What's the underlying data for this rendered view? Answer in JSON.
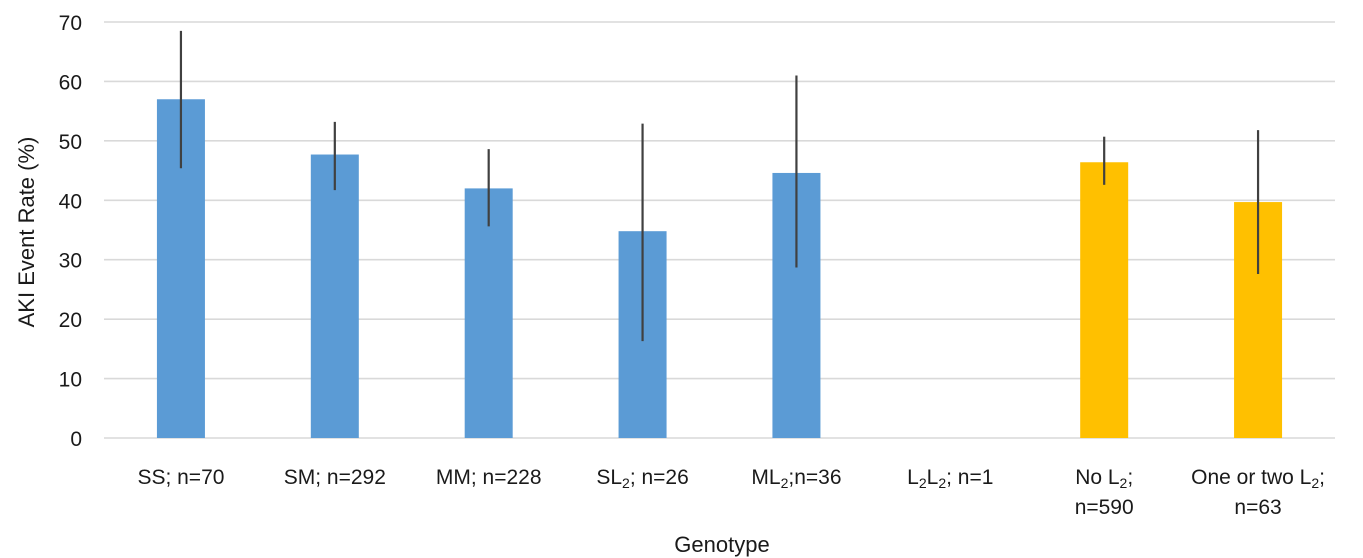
{
  "chart_data": {
    "type": "bar",
    "title": "",
    "xlabel": "Genotype",
    "ylabel": "AKI Event Rate (%)",
    "ylim": [
      0,
      70
    ],
    "yticks": [
      0,
      10,
      20,
      30,
      40,
      50,
      60,
      70
    ],
    "grid": true,
    "legend": "none",
    "categories": [
      {
        "lines": [
          [
            "SS; n=70"
          ]
        ]
      },
      {
        "lines": [
          [
            "SM; n=292"
          ]
        ]
      },
      {
        "lines": [
          [
            "MM; n=228"
          ]
        ]
      },
      {
        "lines": [
          [
            "SL",
            {
              "sub": "2"
            },
            "; n=26"
          ]
        ]
      },
      {
        "lines": [
          [
            "ML",
            {
              "sub": "2"
            },
            ";n=36"
          ]
        ]
      },
      {
        "lines": [
          [
            "L",
            {
              "sub": "2"
            },
            "L",
            {
              "sub": "2"
            },
            "; n=1"
          ]
        ]
      },
      {
        "lines": [
          [
            "No L",
            {
              "sub": "2"
            },
            ";"
          ],
          [
            "n=590"
          ]
        ]
      },
      {
        "lines": [
          [
            "One or two L",
            {
              "sub": "2"
            },
            ";"
          ],
          [
            "n=63"
          ]
        ]
      }
    ],
    "values": [
      57,
      47.7,
      42,
      34.8,
      44.6,
      0,
      46.4,
      39.7
    ],
    "error_low": [
      45.4,
      41.7,
      35.6,
      16.3,
      28.7,
      null,
      42.6,
      27.6
    ],
    "error_high": [
      68.5,
      53.2,
      48.6,
      52.9,
      61,
      null,
      50.7,
      51.8
    ],
    "colors": [
      "#5b9bd5",
      "#5b9bd5",
      "#5b9bd5",
      "#5b9bd5",
      "#5b9bd5",
      "#5b9bd5",
      "#ffc000",
      "#ffc000"
    ],
    "errorbar_color": "#404040",
    "grid_color": "#d9d9d9"
  }
}
